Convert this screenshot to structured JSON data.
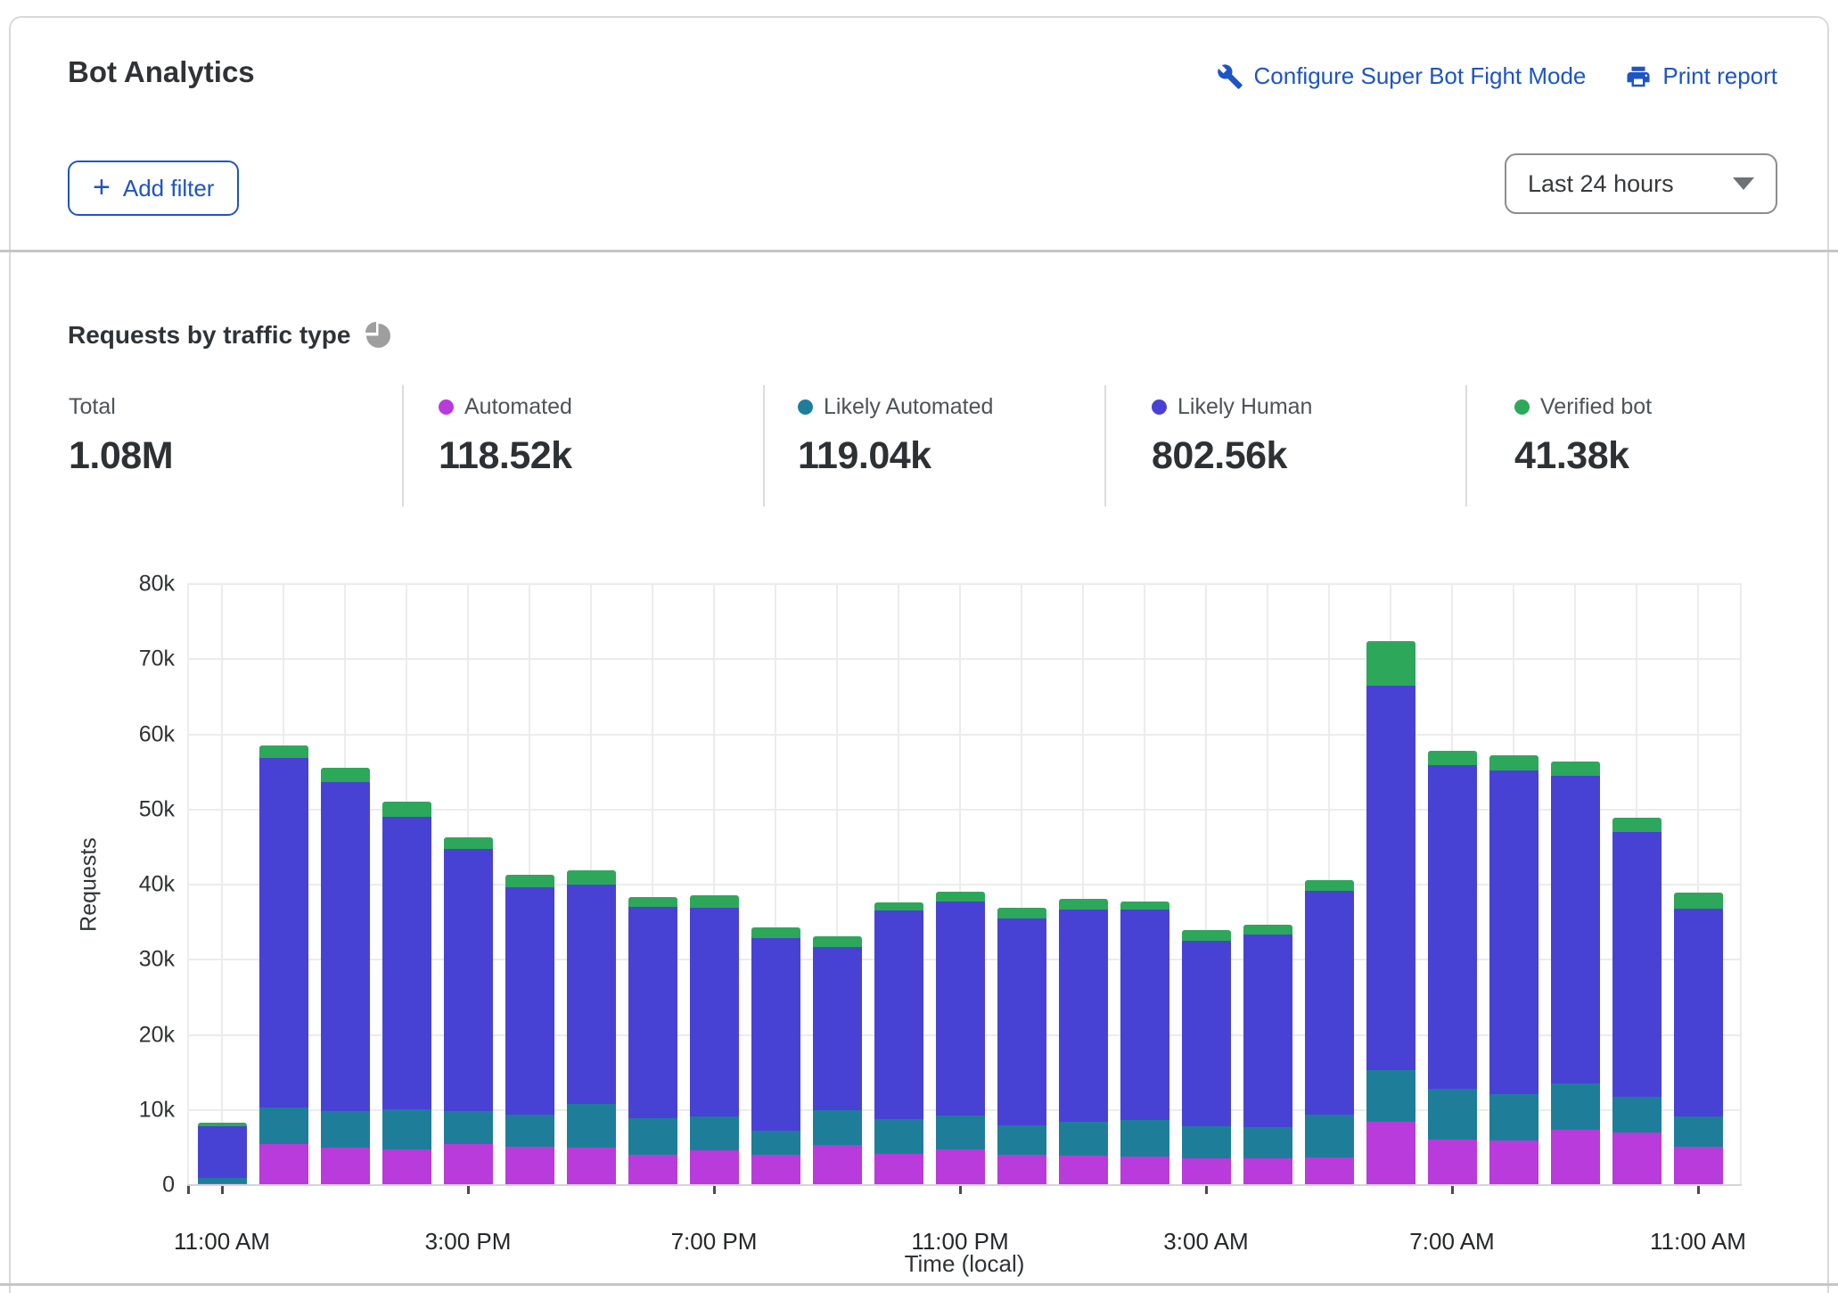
{
  "header": {
    "title": "Bot Analytics",
    "configure_link": "Configure Super Bot Fight Mode",
    "print_link": "Print report",
    "add_filter_label": "Add filter",
    "time_range_value": "Last 24 hours"
  },
  "section": {
    "title": "Requests by traffic type",
    "stats": [
      {
        "label": "Total",
        "value": "1.08M",
        "color": null
      },
      {
        "label": "Automated",
        "value": "118.52k",
        "color": "#b93bdb"
      },
      {
        "label": "Likely Automated",
        "value": "119.04k",
        "color": "#1e7e99"
      },
      {
        "label": "Likely Human",
        "value": "802.56k",
        "color": "#4842d4"
      },
      {
        "label": "Verified bot",
        "value": "41.38k",
        "color": "#2da85a"
      }
    ]
  },
  "chart_data": {
    "type": "bar",
    "stacked": true,
    "title": "Requests by traffic type",
    "xlabel": "Time (local)",
    "ylabel": "Requests",
    "ylim": [
      0,
      80000
    ],
    "values_unit": "thousands of requests",
    "grid": true,
    "y_ticks": [
      "0",
      "10k",
      "20k",
      "30k",
      "40k",
      "50k",
      "60k",
      "70k",
      "80k"
    ],
    "x_tick_labels": [
      "11:00 AM",
      "3:00 PM",
      "7:00 PM",
      "11:00 PM",
      "3:00 AM",
      "7:00 AM",
      "11:00 AM"
    ],
    "x_tick_every": 4,
    "categories": [
      "11:00 AM",
      "12:00 PM",
      "1:00 PM",
      "2:00 PM",
      "3:00 PM",
      "4:00 PM",
      "5:00 PM",
      "6:00 PM",
      "7:00 PM",
      "8:00 PM",
      "9:00 PM",
      "10:00 PM",
      "11:00 PM",
      "12:00 AM",
      "1:00 AM",
      "2:00 AM",
      "3:00 AM",
      "4:00 AM",
      "5:00 AM",
      "6:00 AM",
      "7:00 AM",
      "8:00 AM",
      "9:00 AM",
      "10:00 AM",
      "11:00 AM"
    ],
    "series": [
      {
        "name": "Automated",
        "color": "#b93bdb",
        "values": [
          0.3,
          5.5,
          5.0,
          4.8,
          5.5,
          5.1,
          5.0,
          4.1,
          4.6,
          4.1,
          5.4,
          4.2,
          4.8,
          4.0,
          3.9,
          3.8,
          3.6,
          3.6,
          3.7,
          8.4,
          6.1,
          5.9,
          7.4,
          7.0,
          5.1
        ]
      },
      {
        "name": "Likely Automated",
        "color": "#1e7e99",
        "values": [
          0.7,
          4.8,
          4.9,
          5.3,
          4.4,
          4.3,
          5.8,
          4.8,
          4.5,
          3.1,
          4.6,
          4.6,
          4.5,
          4.0,
          4.5,
          4.9,
          4.3,
          4.1,
          5.7,
          6.9,
          6.7,
          6.2,
          6.2,
          4.7,
          4.1
        ]
      },
      {
        "name": "Likely Human",
        "color": "#4842d4",
        "values": [
          6.8,
          46.6,
          43.8,
          38.9,
          34.9,
          30.2,
          29.2,
          28.2,
          27.8,
          25.7,
          21.7,
          27.7,
          28.5,
          27.5,
          28.3,
          28.0,
          24.6,
          25.7,
          29.8,
          51.2,
          43.1,
          43.1,
          40.9,
          35.3,
          27.6
        ]
      },
      {
        "name": "Verified bot",
        "color": "#2da85a",
        "values": [
          0.5,
          1.6,
          1.8,
          2.0,
          1.5,
          1.7,
          1.9,
          1.3,
          1.7,
          1.4,
          1.4,
          1.1,
          1.3,
          1.4,
          1.4,
          1.1,
          1.4,
          1.3,
          1.4,
          5.9,
          1.9,
          2.0,
          1.9,
          1.9,
          2.2
        ]
      }
    ],
    "legend_position": "top (stats row doubles as legend)"
  },
  "colors": {
    "link_blue": "#1d54c6",
    "divider": "#c6c6c6",
    "gridline": "#ececec",
    "text_dark": "#2e3133",
    "text_muted": "#4e5357"
  }
}
